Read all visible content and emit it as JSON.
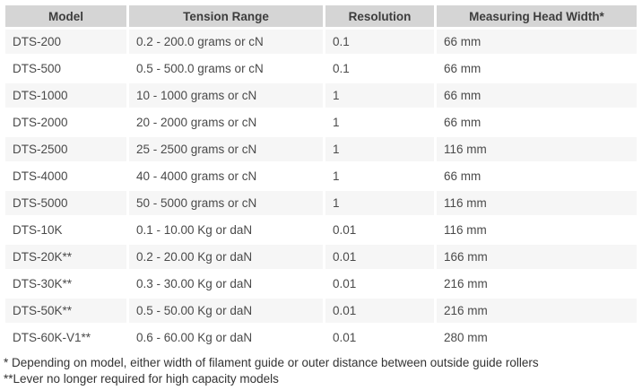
{
  "table": {
    "columns": [
      {
        "key": "model",
        "label": "Model"
      },
      {
        "key": "tension_range",
        "label": "Tension Range"
      },
      {
        "key": "resolution",
        "label": "Resolution"
      },
      {
        "key": "head_width",
        "label": "Measuring Head Width*"
      }
    ],
    "rows": [
      {
        "model": "DTS-200",
        "tension_range": "0.2 - 200.0 grams or cN",
        "resolution": "0.1",
        "head_width": "66 mm"
      },
      {
        "model": "DTS-500",
        "tension_range": "0.5 - 500.0 grams or cN",
        "resolution": "0.1",
        "head_width": "66 mm"
      },
      {
        "model": "DTS-1000",
        "tension_range": "10 - 1000 grams or cN",
        "resolution": "1",
        "head_width": "66 mm"
      },
      {
        "model": "DTS-2000",
        "tension_range": "20 - 2000 grams or cN",
        "resolution": "1",
        "head_width": "66 mm"
      },
      {
        "model": "DTS-2500",
        "tension_range": "25 - 2500 grams or cN",
        "resolution": "1",
        "head_width": "116 mm"
      },
      {
        "model": "DTS-4000",
        "tension_range": "40 - 4000 grams or cN",
        "resolution": "1",
        "head_width": "66 mm"
      },
      {
        "model": "DTS-5000",
        "tension_range": "50 - 5000 grams or cN",
        "resolution": "1",
        "head_width": "116 mm"
      },
      {
        "model": "DTS-10K",
        "tension_range": "0.1 - 10.00 Kg or daN",
        "resolution": "0.01",
        "head_width": "116 mm"
      },
      {
        "model": "DTS-20K**",
        "tension_range": "0.2 - 20.00 Kg or daN",
        "resolution": "0.01",
        "head_width": "166 mm"
      },
      {
        "model": "DTS-30K**",
        "tension_range": "0.3 - 30.00 Kg or daN",
        "resolution": "0.01",
        "head_width": "216 mm"
      },
      {
        "model": "DTS-50K**",
        "tension_range": "0.5 - 50.00 Kg or daN",
        "resolution": "0.01",
        "head_width": "216 mm"
      },
      {
        "model": "DTS-60K-V1**",
        "tension_range": "0.6 - 60.00 Kg or daN",
        "resolution": "0.01",
        "head_width": "280 mm"
      }
    ]
  },
  "footnotes": [
    "* Depending on model, either width of filament guide or outer distance between outside guide rollers",
    "**Lever no longer required for high capacity models"
  ],
  "colors": {
    "header_bg": "#d5d5d5",
    "row_alt_bg": "#f6f6f6",
    "row_bg": "#ffffff",
    "header_text": "#3d3d3d",
    "body_text": "#4a4a4a",
    "footnote_text": "#333333"
  }
}
